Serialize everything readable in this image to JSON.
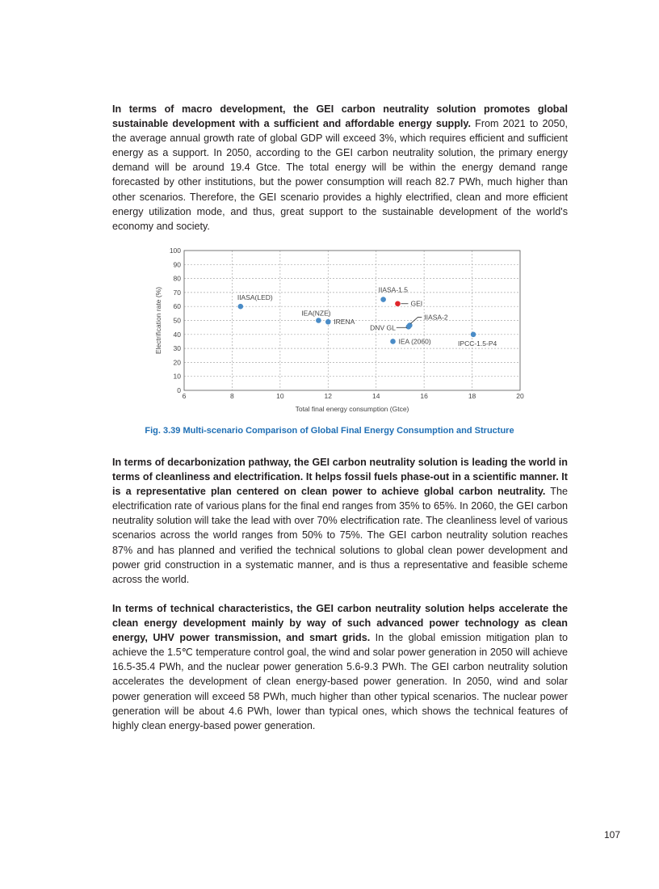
{
  "paragraphs": [
    {
      "bold": "In terms of macro development, the GEI carbon neutrality solution promotes global sustainable development with a sufficient and affordable energy supply.",
      "text": " From 2021 to 2050, the average annual growth rate of global GDP will exceed 3%, which requires efficient and sufficient energy as a support. In 2050, according to the GEI carbon neutrality solution, the primary energy demand will be around 19.4 Gtce. The total energy will be within the energy demand range forecasted by other institutions, but the power consumption will reach 82.7 PWh, much higher than other scenarios. Therefore, the GEI scenario provides a highly electrified, clean and more efficient energy utilization mode, and thus, great support to the sustainable development of the world's economy and society."
    },
    {
      "bold": "In terms of decarbonization pathway, the GEI carbon neutrality solution is leading the world in terms of cleanliness and electrification. It helps fossil fuels phase-out in a scientific manner. It is a representative plan centered on clean power to achieve global carbon neutrality.",
      "text": " The electrification rate of various plans for the final end ranges from 35% to 65%. In 2060, the GEI carbon neutrality solution will take the lead with over 70% electrification rate. The cleanliness level of various scenarios across the world ranges from 50% to 75%. The GEI carbon neutrality solution reaches 87% and has planned and verified the technical solutions to global clean power development and power grid construction in a systematic manner, and is thus a representative and feasible scheme across the world."
    },
    {
      "bold": "In terms of technical characteristics, the GEI carbon neutrality solution helps accelerate the clean energy development mainly by way of such advanced power technology as clean energy, UHV power transmission, and smart grids.",
      "text": " In the global emission mitigation plan to achieve the 1.5℃ temperature control goal, the wind and solar power generation in 2050 will achieve 16.5-35.4 PWh, and the nuclear power generation 5.6-9.3 PWh. The GEI carbon neutrality solution accelerates the development of clean energy-based power generation. In 2050, wind and solar power generation will exceed 58 PWh, much higher than other typical scenarios. The nuclear power generation will be about 4.6 PWh, lower than typical ones, which shows the technical features of highly clean energy-based power generation."
    }
  ],
  "caption": "Fig. 3.39   Multi-scenario Comparison of Global Final Energy Consumption and Structure",
  "page_number": "107",
  "chart_data": {
    "type": "scatter",
    "xlabel": "Total final energy consumption (Gtce)",
    "ylabel": "Electrification rate (%)",
    "xlim": [
      6,
      20
    ],
    "ylim": [
      0,
      100
    ],
    "xticks": [
      6,
      8,
      10,
      12,
      14,
      16,
      18,
      20
    ],
    "yticks": [
      0,
      10,
      20,
      30,
      40,
      50,
      60,
      70,
      80,
      90,
      100
    ],
    "grid": true,
    "points": [
      {
        "label": "IIASA(LED)",
        "x": 8.35,
        "y": 60,
        "color": "#4a8cc7"
      },
      {
        "label": "IEA(NZE)",
        "x": 11.6,
        "y": 50,
        "color": "#4a8cc7"
      },
      {
        "label": "IRENA",
        "x": 12.0,
        "y": 49,
        "color": "#4a8cc7"
      },
      {
        "label": "IIASA-1.5",
        "x": 14.3,
        "y": 65,
        "color": "#4a8cc7"
      },
      {
        "label": "GEI",
        "x": 14.9,
        "y": 62,
        "color": "#e0262b"
      },
      {
        "label": "IIASA-2",
        "x": 15.4,
        "y": 46.5,
        "color": "#4a8cc7"
      },
      {
        "label": "DNV GL",
        "x": 15.35,
        "y": 45.5,
        "color": "#4a8cc7"
      },
      {
        "label": "IEA (2060)",
        "x": 14.7,
        "y": 35,
        "color": "#4a8cc7"
      },
      {
        "label": "IPCC-1.5-P4",
        "x": 18.05,
        "y": 40,
        "color": "#4a8cc7"
      }
    ]
  }
}
